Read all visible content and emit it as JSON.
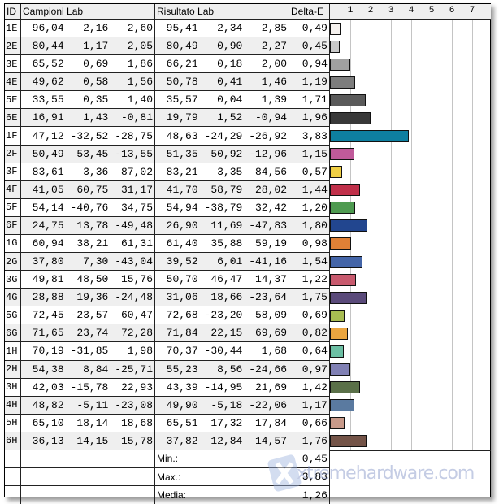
{
  "header": {
    "id": "ID",
    "campioni": "Campioni Lab",
    "risultato": "Risultato Lab",
    "delta": "Delta-E"
  },
  "chart_data": {
    "type": "bar",
    "orientation": "horizontal",
    "x_ticks": [
      "1",
      "2",
      "3",
      "4",
      "5",
      "6",
      "7"
    ],
    "xlim": [
      0,
      7.9
    ],
    "grid": true,
    "categories": [
      "1E",
      "2E",
      "3E",
      "4E",
      "5E",
      "6E",
      "1F",
      "2F",
      "3F",
      "4F",
      "5F",
      "6F",
      "1G",
      "2G",
      "3G",
      "4G",
      "5G",
      "6G",
      "1H",
      "2H",
      "3H",
      "4H",
      "5H",
      "6H"
    ],
    "values": [
      0.49,
      0.45,
      0.94,
      1.19,
      1.71,
      1.96,
      3.83,
      1.15,
      0.57,
      1.44,
      1.2,
      1.8,
      0.98,
      1.54,
      1.22,
      1.75,
      0.69,
      0.82,
      0.64,
      0.97,
      1.42,
      1.17,
      0.66,
      1.76
    ],
    "colors": [
      "#f5f1ee",
      "#c9c9c9",
      "#a0a0a0",
      "#7d7d7d",
      "#5a5a5a",
      "#383838",
      "#0e7fa0",
      "#c05a9a",
      "#f0cf44",
      "#c0304a",
      "#4e9a50",
      "#22468f",
      "#e08036",
      "#4465a8",
      "#c85a6e",
      "#5a4a7a",
      "#a8bc52",
      "#eba640",
      "#6cbfa4",
      "#8080b4",
      "#5a7048",
      "#5a7aa0",
      "#c89a8a",
      "#745448"
    ]
  },
  "rows": [
    [
      "1E",
      "96,04",
      "2,16",
      "2,60",
      "95,41",
      "2,34",
      "2,85",
      "0,49"
    ],
    [
      "2E",
      "80,44",
      "1,17",
      "2,05",
      "80,49",
      "0,90",
      "2,27",
      "0,45"
    ],
    [
      "3E",
      "65,52",
      "0,69",
      "1,86",
      "66,21",
      "0,18",
      "2,00",
      "0,94"
    ],
    [
      "4E",
      "49,62",
      "0,58",
      "1,56",
      "50,78",
      "0,41",
      "1,46",
      "1,19"
    ],
    [
      "5E",
      "33,55",
      "0,35",
      "1,40",
      "35,57",
      "0,04",
      "1,39",
      "1,71"
    ],
    [
      "6E",
      "16,91",
      "1,43",
      "-0,81",
      "19,79",
      "1,52",
      "-0,94",
      "1,96"
    ],
    [
      "1F",
      "47,12",
      "-32,52",
      "-28,75",
      "48,63",
      "-24,29",
      "-26,92",
      "3,83"
    ],
    [
      "2F",
      "50,49",
      "53,45",
      "-13,55",
      "51,35",
      "50,92",
      "-12,96",
      "1,15"
    ],
    [
      "3F",
      "83,61",
      "3,36",
      "87,02",
      "83,21",
      "3,35",
      "84,56",
      "0,57"
    ],
    [
      "4F",
      "41,05",
      "60,75",
      "31,17",
      "41,70",
      "58,79",
      "28,02",
      "1,44"
    ],
    [
      "5F",
      "54,14",
      "-40,76",
      "34,75",
      "54,94",
      "-38,79",
      "32,42",
      "1,20"
    ],
    [
      "6F",
      "24,75",
      "13,78",
      "-49,48",
      "26,90",
      "11,69",
      "-47,83",
      "1,80"
    ],
    [
      "1G",
      "60,94",
      "38,21",
      "61,31",
      "61,40",
      "35,88",
      "59,19",
      "0,98"
    ],
    [
      "2G",
      "37,80",
      "7,30",
      "-43,04",
      "39,52",
      "6,01",
      "-41,16",
      "1,54"
    ],
    [
      "3G",
      "49,81",
      "48,50",
      "15,76",
      "50,70",
      "46,47",
      "14,37",
      "1,22"
    ],
    [
      "4G",
      "28,88",
      "19,36",
      "-24,48",
      "31,06",
      "18,66",
      "-23,64",
      "1,75"
    ],
    [
      "5G",
      "72,45",
      "-23,57",
      "60,47",
      "72,68",
      "-23,20",
      "58,09",
      "0,69"
    ],
    [
      "6G",
      "71,65",
      "23,74",
      "72,28",
      "71,84",
      "22,15",
      "69,69",
      "0,82"
    ],
    [
      "1H",
      "70,19",
      "-31,85",
      "1,98",
      "70,37",
      "-30,44",
      "1,68",
      "0,64"
    ],
    [
      "2H",
      "54,38",
      "8,84",
      "-25,71",
      "55,23",
      "8,56",
      "-24,66",
      "0,97"
    ],
    [
      "3H",
      "42,03",
      "-15,78",
      "22,93",
      "43,39",
      "-14,95",
      "21,69",
      "1,42"
    ],
    [
      "4H",
      "48,82",
      "-5,11",
      "-23,08",
      "49,90",
      "-5,18",
      "-22,06",
      "1,17"
    ],
    [
      "5H",
      "65,10",
      "18,14",
      "18,68",
      "65,51",
      "17,32",
      "17,84",
      "0,66"
    ],
    [
      "6H",
      "36,13",
      "14,15",
      "15,78",
      "37,82",
      "12,84",
      "14,57",
      "1,76"
    ]
  ],
  "summary": [
    {
      "label": "Min.:",
      "value": "0,45"
    },
    {
      "label": "Max.:",
      "value": "3,83"
    },
    {
      "label": "Media:",
      "value": "1,26"
    }
  ],
  "watermark": {
    "text": "xtremehardware.com",
    "logo_color": "#7d8fc4"
  }
}
